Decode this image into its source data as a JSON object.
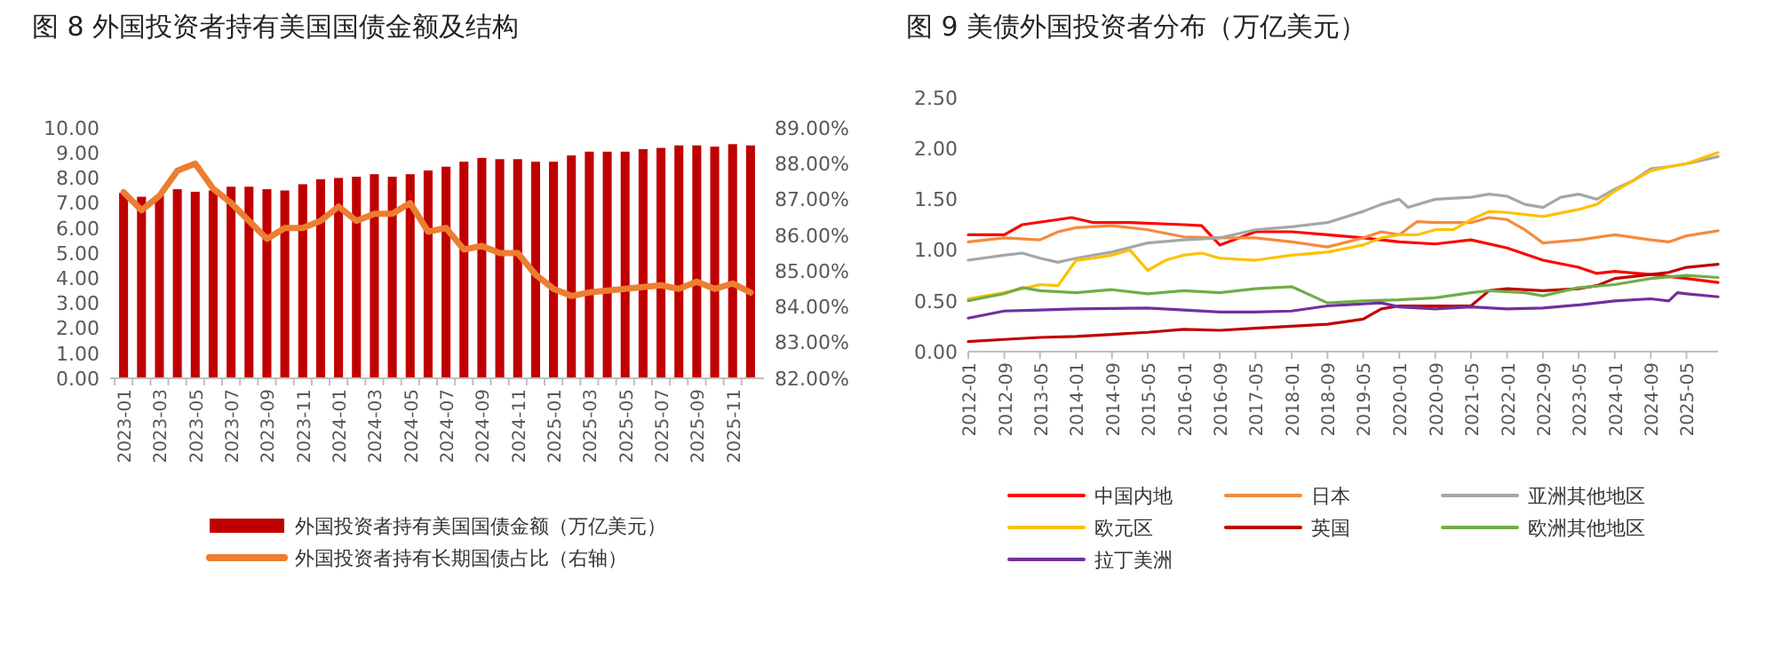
{
  "chart_data": [
    {
      "type": "bar",
      "title": "图 8  外国投资者持有美国国债金额及结构",
      "categories": [
        "2023-01",
        null,
        "2023-03",
        null,
        "2023-05",
        null,
        "2023-07",
        null,
        "2023-09",
        null,
        "2023-11",
        null,
        "2024-01",
        null,
        "2024-03",
        null,
        "2024-05",
        null,
        "2024-07",
        null,
        "2024-09",
        null,
        "2024-11",
        null,
        "2025-01",
        null,
        "2025-03",
        null,
        "2025-05",
        null,
        "2025-07",
        null,
        "2025-09",
        null,
        "2025-11",
        null
      ],
      "series": [
        {
          "name": "外国投资者持有美国国债金额（万亿美元）",
          "type": "bar",
          "color": "#c00000",
          "values": [
            7.4,
            7.25,
            7.3,
            7.55,
            7.45,
            7.5,
            7.65,
            7.65,
            7.55,
            7.5,
            7.75,
            7.95,
            8.0,
            8.05,
            8.15,
            8.05,
            8.15,
            8.3,
            8.45,
            8.65,
            8.8,
            8.75,
            8.75,
            8.65,
            8.65,
            8.9,
            9.05,
            9.05,
            9.05,
            9.15,
            9.2,
            9.3,
            9.3,
            9.25,
            9.35,
            9.3
          ]
        },
        {
          "name": "外国投资者持有长期国债占比（右轴）",
          "type": "line",
          "axis": "y2",
          "color": "#ed7d31",
          "values": [
            87.2,
            86.7,
            87.1,
            87.8,
            88.0,
            87.3,
            86.9,
            86.4,
            85.9,
            86.2,
            86.2,
            86.4,
            86.8,
            86.4,
            86.6,
            86.6,
            86.9,
            86.1,
            86.2,
            85.6,
            85.7,
            85.5,
            85.5,
            84.9,
            84.5,
            84.3,
            84.4,
            84.45,
            84.5,
            84.55,
            84.6,
            84.5,
            84.7,
            84.5,
            84.65,
            84.4
          ]
        }
      ],
      "ylim": [
        0,
        10
      ],
      "yticks": [
        {
          "value": 0,
          "label": "0.00"
        },
        {
          "value": 1,
          "label": "1.00"
        },
        {
          "value": 2,
          "label": "2.00"
        },
        {
          "value": 3,
          "label": "3.00"
        },
        {
          "value": 4,
          "label": "4.00"
        },
        {
          "value": 5,
          "label": "5.00"
        },
        {
          "value": 6,
          "label": "6.00"
        },
        {
          "value": 7,
          "label": "7.00"
        },
        {
          "value": 8,
          "label": "8.00"
        },
        {
          "value": 9,
          "label": "9.00"
        },
        {
          "value": 10,
          "label": "10.00"
        }
      ],
      "y2lim": [
        82,
        89
      ],
      "y2ticks": [
        {
          "value": 82,
          "label": "82.00%"
        },
        {
          "value": 83,
          "label": "83.00%"
        },
        {
          "value": 84,
          "label": "84.00%"
        },
        {
          "value": 85,
          "label": "85.00%"
        },
        {
          "value": 86,
          "label": "86.00%"
        },
        {
          "value": 87,
          "label": "87.00%"
        },
        {
          "value": 88,
          "label": "88.00%"
        },
        {
          "value": 89,
          "label": "89.00%"
        }
      ],
      "grid": false,
      "legend": "bottom"
    },
    {
      "type": "line",
      "title": "图 9  美债外国投资者分布（万亿美元）",
      "series": [
        {
          "name": "中国内地",
          "color": "#ff0000",
          "x": [
            "2012-01",
            "2012-09",
            "2013-01",
            "2013-09",
            "2013-12",
            "2014-05",
            "2015-01",
            "2016-01",
            "2016-05",
            "2016-09",
            "2017-05",
            "2018-01",
            "2018-09",
            "2019-05",
            "2020-01",
            "2020-09",
            "2021-05",
            "2022-01",
            "2022-09",
            "2023-05",
            "2023-09",
            "2024-01",
            "2024-09",
            "2025-05",
            "2025-12"
          ],
          "values": [
            1.15,
            1.15,
            1.25,
            1.3,
            1.32,
            1.27,
            1.27,
            1.25,
            1.24,
            1.05,
            1.18,
            1.18,
            1.15,
            1.12,
            1.08,
            1.06,
            1.1,
            1.02,
            0.9,
            0.83,
            0.77,
            0.79,
            0.76,
            0.72,
            0.68
          ]
        },
        {
          "name": "日本",
          "color": "#f58a3c",
          "x": [
            "2012-01",
            "2012-09",
            "2013-05",
            "2013-09",
            "2014-01",
            "2014-09",
            "2015-05",
            "2016-01",
            "2016-09",
            "2017-05",
            "2018-01",
            "2018-09",
            "2019-05",
            "2019-09",
            "2020-01",
            "2020-05",
            "2020-09",
            "2021-05",
            "2021-09",
            "2022-01",
            "2022-05",
            "2022-09",
            "2023-05",
            "2024-01",
            "2024-09",
            "2025-01",
            "2025-05",
            "2025-12"
          ],
          "values": [
            1.08,
            1.12,
            1.1,
            1.18,
            1.22,
            1.24,
            1.2,
            1.13,
            1.12,
            1.12,
            1.08,
            1.03,
            1.12,
            1.18,
            1.15,
            1.28,
            1.27,
            1.27,
            1.32,
            1.3,
            1.2,
            1.07,
            1.1,
            1.15,
            1.1,
            1.08,
            1.14,
            1.19
          ]
        },
        {
          "name": "亚洲其他地区",
          "color": "#a6a6a6",
          "x": [
            "2012-01",
            "2012-09",
            "2013-01",
            "2013-05",
            "2013-09",
            "2014-01",
            "2014-09",
            "2015-05",
            "2016-01",
            "2016-09",
            "2017-05",
            "2018-01",
            "2018-09",
            "2019-05",
            "2019-09",
            "2020-01",
            "2020-03",
            "2020-09",
            "2021-05",
            "2021-09",
            "2022-01",
            "2022-05",
            "2022-09",
            "2023-01",
            "2023-05",
            "2023-09",
            "2024-01",
            "2024-05",
            "2024-09",
            "2025-01",
            "2025-05",
            "2025-12"
          ],
          "values": [
            0.9,
            0.95,
            0.97,
            0.92,
            0.88,
            0.92,
            0.98,
            1.07,
            1.1,
            1.12,
            1.2,
            1.23,
            1.27,
            1.38,
            1.45,
            1.5,
            1.42,
            1.5,
            1.52,
            1.55,
            1.53,
            1.45,
            1.42,
            1.52,
            1.55,
            1.5,
            1.6,
            1.68,
            1.8,
            1.82,
            1.85,
            1.92
          ]
        },
        {
          "name": "欧元区",
          "color": "#ffc000",
          "x": [
            "2012-01",
            "2012-09",
            "2013-01",
            "2013-05",
            "2013-09",
            "2014-01",
            "2014-05",
            "2014-09",
            "2015-01",
            "2015-05",
            "2015-09",
            "2016-01",
            "2016-05",
            "2016-09",
            "2017-05",
            "2018-01",
            "2018-09",
            "2019-05",
            "2019-09",
            "2020-01",
            "2020-05",
            "2020-09",
            "2021-01",
            "2021-05",
            "2021-09",
            "2022-01",
            "2022-09",
            "2023-05",
            "2023-09",
            "2024-01",
            "2024-05",
            "2024-09",
            "2025-01",
            "2025-05",
            "2025-12"
          ],
          "values": [
            0.52,
            0.58,
            0.62,
            0.66,
            0.65,
            0.9,
            0.92,
            0.95,
            1.0,
            0.8,
            0.9,
            0.95,
            0.97,
            0.92,
            0.9,
            0.95,
            0.98,
            1.05,
            1.12,
            1.15,
            1.15,
            1.2,
            1.2,
            1.3,
            1.38,
            1.37,
            1.33,
            1.4,
            1.45,
            1.58,
            1.68,
            1.78,
            1.82,
            1.85,
            1.96
          ]
        },
        {
          "name": "英国",
          "color": "#c00000",
          "x": [
            "2012-01",
            "2012-09",
            "2013-05",
            "2014-01",
            "2014-09",
            "2015-05",
            "2016-01",
            "2016-09",
            "2017-05",
            "2018-01",
            "2018-09",
            "2019-05",
            "2019-09",
            "2020-01",
            "2020-09",
            "2021-05",
            "2021-09",
            "2022-01",
            "2022-09",
            "2023-05",
            "2023-09",
            "2024-01",
            "2024-09",
            "2025-01",
            "2025-05",
            "2025-12"
          ],
          "values": [
            0.1,
            0.12,
            0.14,
            0.15,
            0.17,
            0.19,
            0.22,
            0.21,
            0.23,
            0.25,
            0.27,
            0.32,
            0.42,
            0.45,
            0.45,
            0.45,
            0.6,
            0.62,
            0.6,
            0.62,
            0.65,
            0.72,
            0.76,
            0.78,
            0.83,
            0.86
          ]
        },
        {
          "name": "欧洲其他地区",
          "color": "#70ad47",
          "x": [
            "2012-01",
            "2012-09",
            "2013-01",
            "2013-05",
            "2014-01",
            "2014-09",
            "2015-05",
            "2016-01",
            "2016-09",
            "2017-05",
            "2018-01",
            "2018-09",
            "2019-05",
            "2020-01",
            "2020-09",
            "2021-05",
            "2021-09",
            "2022-05",
            "2022-09",
            "2023-05",
            "2024-01",
            "2024-09",
            "2025-05",
            "2025-12"
          ],
          "values": [
            0.5,
            0.57,
            0.63,
            0.6,
            0.58,
            0.61,
            0.57,
            0.6,
            0.58,
            0.62,
            0.64,
            0.48,
            0.5,
            0.51,
            0.53,
            0.58,
            0.6,
            0.58,
            0.55,
            0.63,
            0.66,
            0.72,
            0.75,
            0.73
          ]
        },
        {
          "name": "拉丁美洲",
          "color": "#7030a0",
          "x": [
            "2012-01",
            "2012-09",
            "2013-05",
            "2014-01",
            "2015-05",
            "2016-01",
            "2016-09",
            "2017-05",
            "2018-01",
            "2018-09",
            "2019-05",
            "2019-09",
            "2020-01",
            "2020-09",
            "2021-05",
            "2022-01",
            "2022-09",
            "2023-05",
            "2024-01",
            "2024-09",
            "2025-01",
            "2025-03",
            "2025-05",
            "2025-12"
          ],
          "values": [
            0.33,
            0.4,
            0.41,
            0.42,
            0.43,
            0.41,
            0.39,
            0.39,
            0.4,
            0.45,
            0.47,
            0.48,
            0.44,
            0.42,
            0.44,
            0.42,
            0.43,
            0.46,
            0.5,
            0.52,
            0.5,
            0.58,
            0.57,
            0.54
          ]
        }
      ],
      "xlim": [
        "2012-01",
        "2025-12"
      ],
      "xticks": [
        "2012-01",
        "2012-09",
        "2013-05",
        "2014-01",
        "2014-09",
        "2015-05",
        "2016-01",
        "2016-09",
        "2017-05",
        "2018-01",
        "2018-09",
        "2019-05",
        "2020-01",
        "2020-09",
        "2021-05",
        "2022-01",
        "2022-09",
        "2023-05",
        "2024-01",
        "2024-09",
        "2025-05"
      ],
      "ylim": [
        0,
        2.5
      ],
      "yticks": [
        {
          "value": 0,
          "label": "0.00"
        },
        {
          "value": 0.5,
          "label": "0.50"
        },
        {
          "value": 1,
          "label": "1.00"
        },
        {
          "value": 1.5,
          "label": "1.50"
        },
        {
          "value": 2,
          "label": "2.00"
        },
        {
          "value": 2.5,
          "label": "2.50"
        }
      ],
      "grid": false,
      "legend": "bottom"
    }
  ]
}
